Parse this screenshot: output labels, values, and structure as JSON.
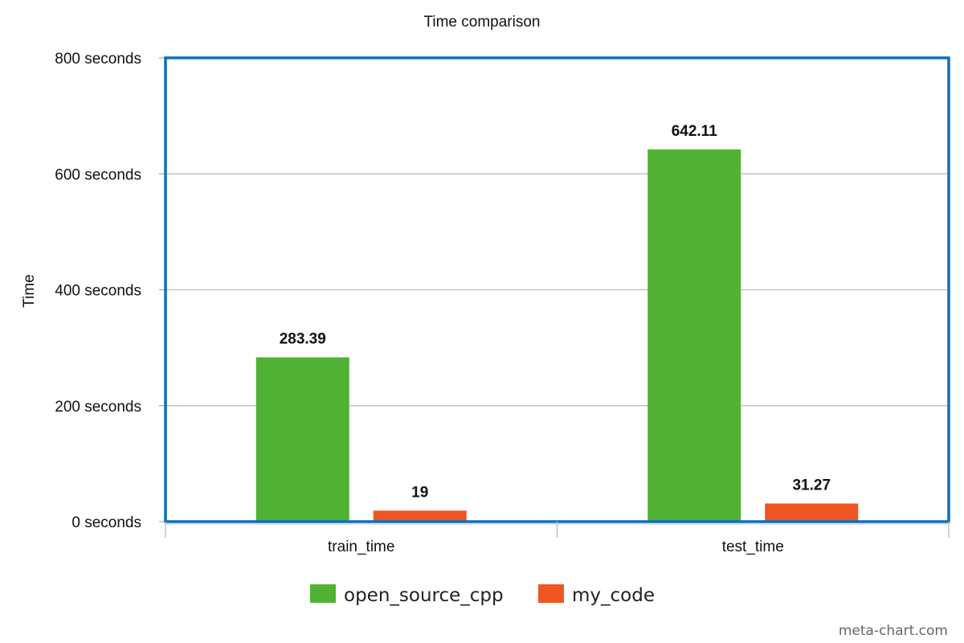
{
  "chart_data": {
    "type": "bar",
    "title": "Time comparison",
    "ylabel": "Time",
    "xlabel": "",
    "categories": [
      "train_time",
      "test_time"
    ],
    "series": [
      {
        "name": "open_source_cpp",
        "values": [
          283.39,
          642.11
        ],
        "color": "#52b234"
      },
      {
        "name": "my_code",
        "values": [
          19,
          31.27
        ],
        "color": "#ee5521"
      }
    ],
    "data_labels": [
      [
        "283.39",
        "642.11"
      ],
      [
        "19",
        "31.27"
      ]
    ],
    "ylim": [
      0,
      800
    ],
    "y_ticks": [
      0,
      200,
      400,
      600,
      800
    ],
    "y_tick_labels": [
      "0 seconds",
      "200 seconds",
      "400 seconds",
      "600 seconds",
      "800 seconds"
    ],
    "grid": true,
    "legend_position": "bottom",
    "frame_color": "#0f6eb9"
  },
  "watermark": "meta-chart.com"
}
